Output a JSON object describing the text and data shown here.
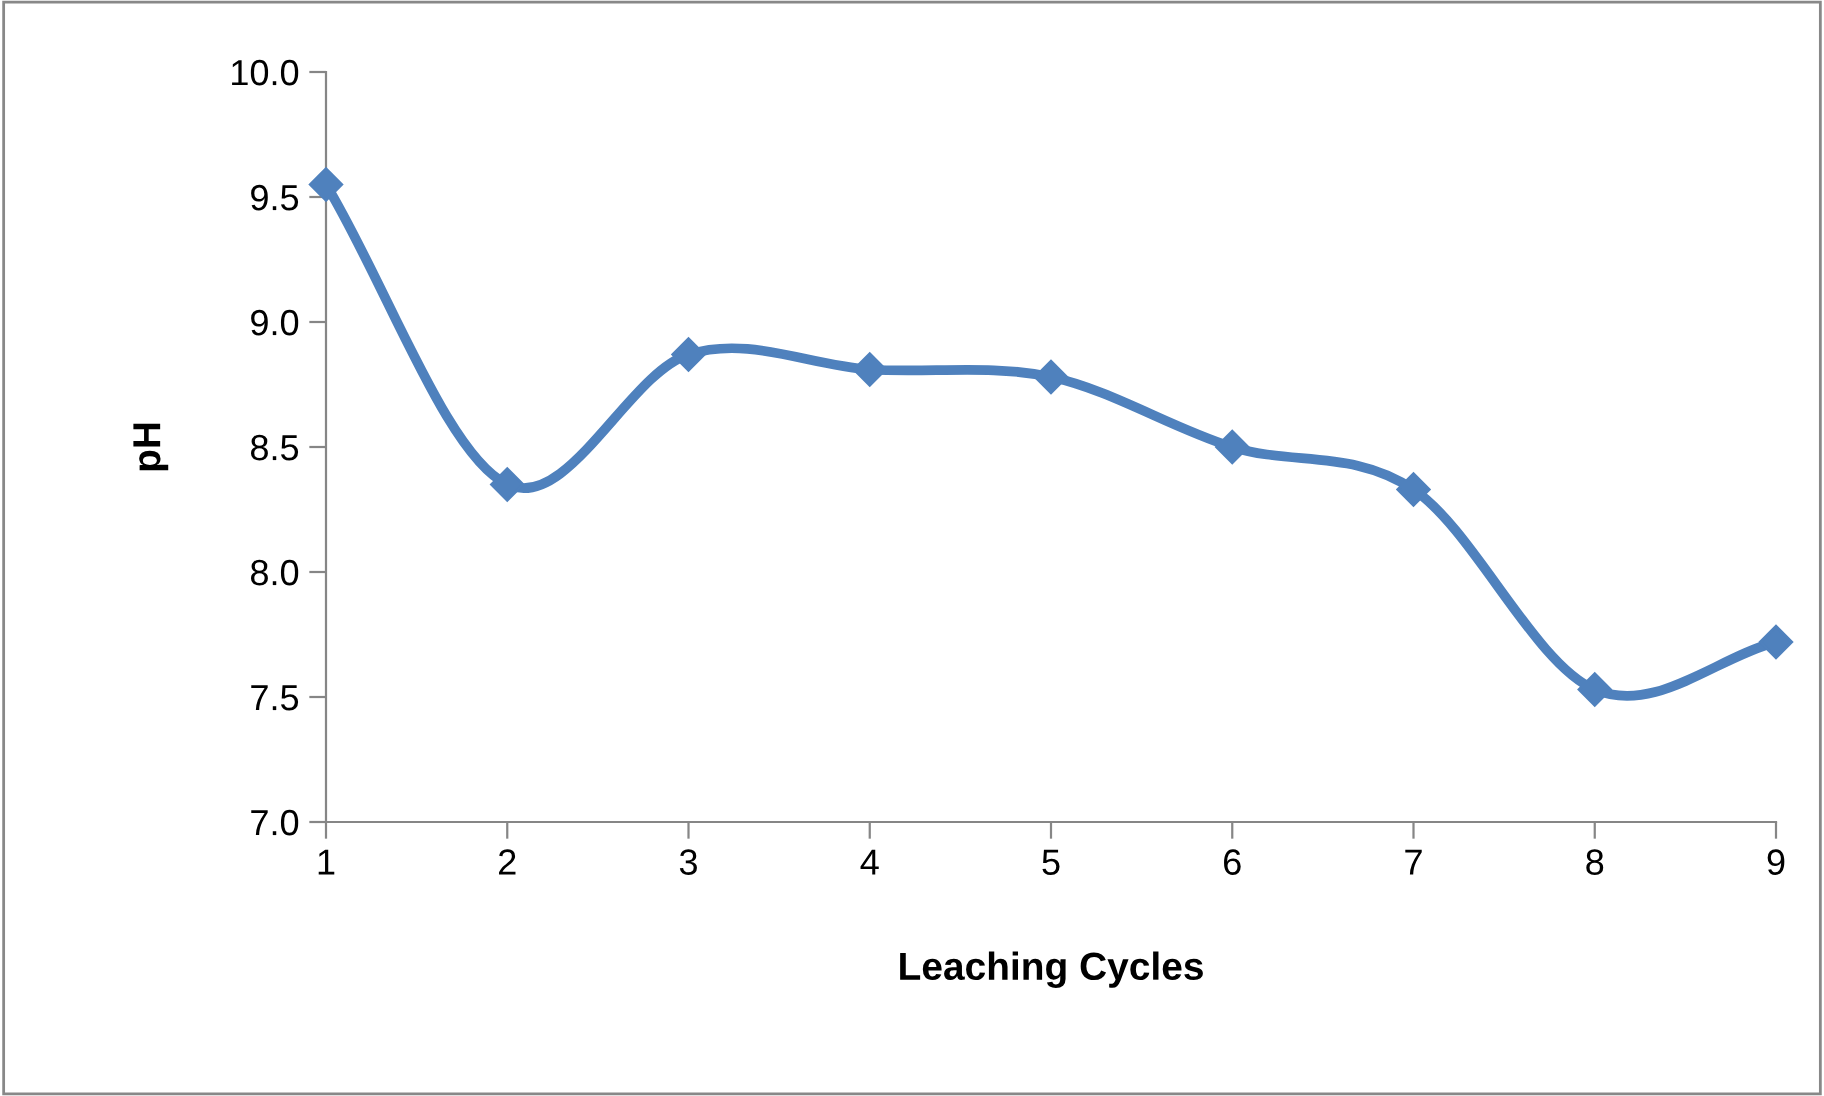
{
  "chart_data": {
    "type": "line",
    "xlabel": "Leaching Cycles",
    "ylabel": "pH",
    "x": [
      1,
      2,
      3,
      4,
      5,
      6,
      7,
      8,
      9
    ],
    "series": [
      {
        "color": "#4f81bd",
        "values": [
          9.55,
          8.35,
          8.87,
          8.81,
          8.78,
          8.5,
          8.33,
          7.53,
          7.72
        ]
      }
    ],
    "xlim": [
      1,
      9
    ],
    "xticks": [
      1,
      2,
      3,
      4,
      5,
      6,
      7,
      8,
      9
    ],
    "ylim": [
      7.0,
      10.0
    ],
    "yticks": [
      {
        "value": 7,
        "label": "7.0"
      },
      {
        "value": 7.5,
        "label": "7.5"
      },
      {
        "value": 8,
        "label": "8.0"
      },
      {
        "value": 8.5,
        "label": "8.5"
      },
      {
        "value": 9,
        "label": "9.0"
      },
      {
        "value": 9.5,
        "label": "9.5"
      },
      {
        "value": 10,
        "label": "10.0"
      }
    ],
    "grid": false,
    "legend": false,
    "marker": "diamond",
    "line_style": "solid"
  }
}
